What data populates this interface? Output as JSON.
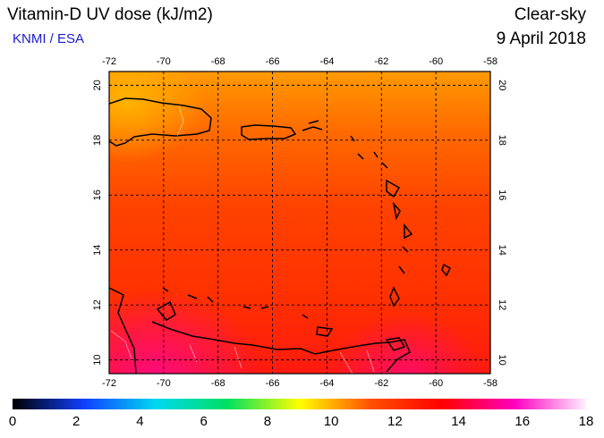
{
  "header": {
    "title": "Vitamin-D UV dose (kJ/m2)",
    "credit": "KNMI / ESA",
    "sky": "Clear-sky",
    "date": "9 April 2018"
  },
  "map": {
    "lon_ticks": [
      "-72",
      "-70",
      "-68",
      "-66",
      "-64",
      "-62",
      "-60",
      "-58"
    ],
    "lat_ticks": [
      "10",
      "12",
      "14",
      "16",
      "18",
      "20"
    ]
  },
  "colorbar": {
    "labels": [
      "0",
      "2",
      "4",
      "6",
      "8",
      "10",
      "12",
      "14",
      "16",
      "18"
    ],
    "colors": [
      "#000000",
      "#1040ff",
      "#00d8f0",
      "#00e060",
      "#ffff00",
      "#ff5000",
      "#ff0000",
      "#ff00c0",
      "#fff0ff"
    ]
  }
}
